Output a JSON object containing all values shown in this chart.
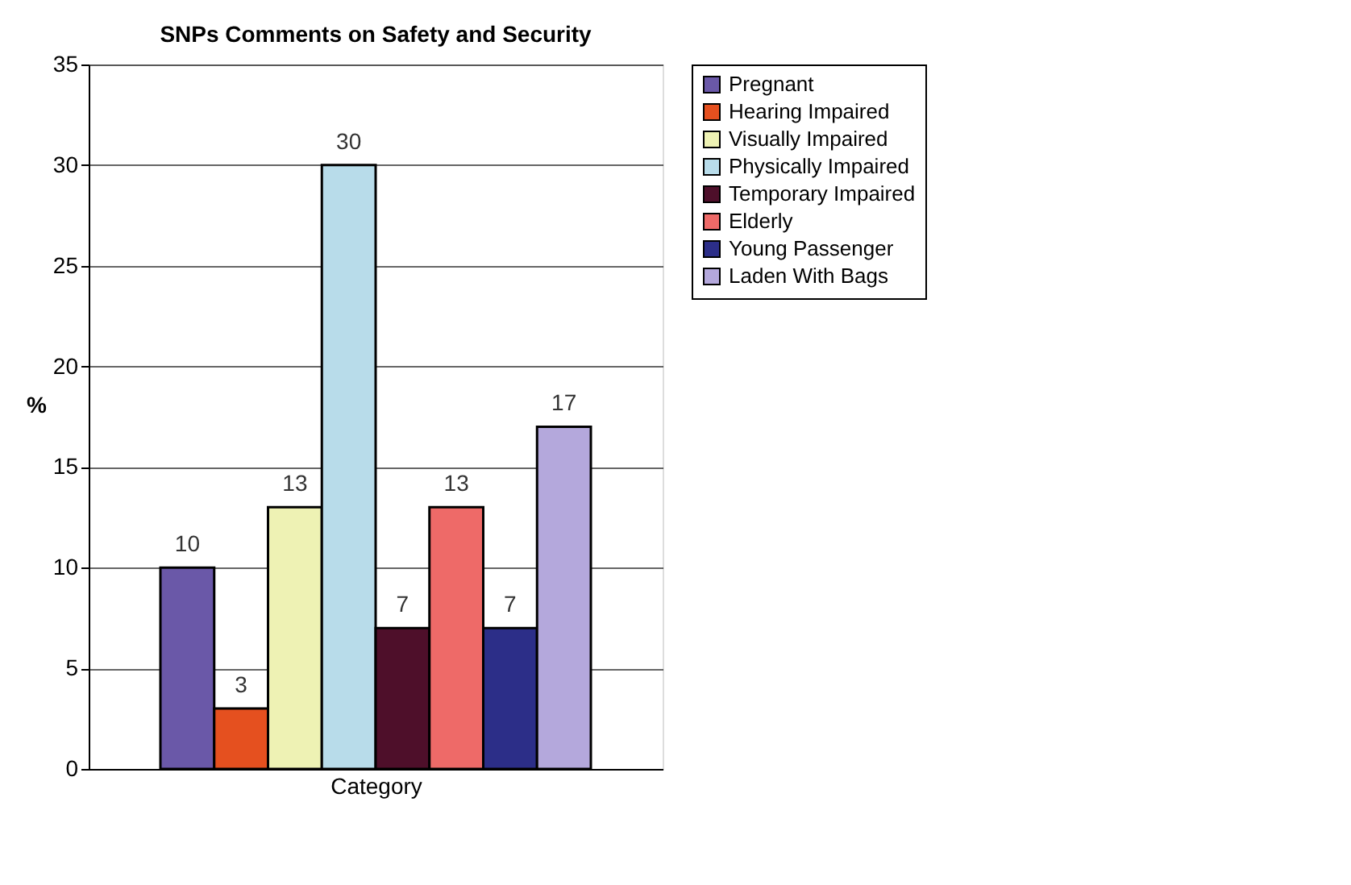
{
  "chart_data": {
    "type": "bar",
    "title": "SNPs Comments on Safety and Security",
    "xlabel": "Category",
    "ylabel": "%",
    "categories": [
      null
    ],
    "series": [
      {
        "name": "Pregnant",
        "color": "#6a58a8",
        "values": [
          10
        ]
      },
      {
        "name": "Hearing Impaired",
        "color": "#e5501f",
        "values": [
          3
        ]
      },
      {
        "name": "Visually Impaired",
        "color": "#eef2b4",
        "values": [
          13
        ]
      },
      {
        "name": "Physically Impaired",
        "color": "#b8dcea",
        "values": [
          30
        ]
      },
      {
        "name": "Temporary Impaired",
        "color": "#4e0f2a",
        "values": [
          7
        ]
      },
      {
        "name": "Elderly",
        "color": "#ee6a68",
        "values": [
          13
        ]
      },
      {
        "name": "Young Passenger",
        "color": "#2c2e88",
        "values": [
          7
        ]
      },
      {
        "name": "Laden With Bags",
        "color": "#b4a8dc",
        "values": [
          17
        ]
      }
    ],
    "ylim": [
      0,
      35
    ],
    "yticks": [
      0,
      5,
      10,
      15,
      20,
      25,
      30,
      35
    ],
    "grid": "y",
    "legend": "right",
    "data_labels": true,
    "tick_labels": "y"
  }
}
